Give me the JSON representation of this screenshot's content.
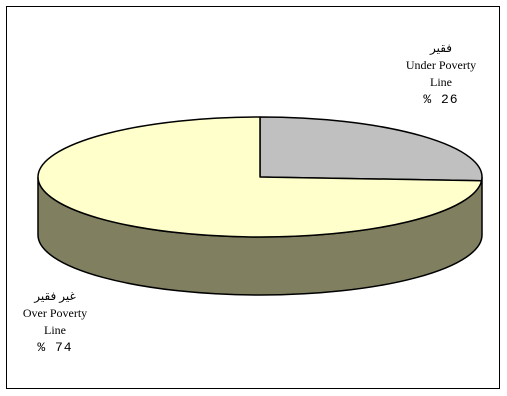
{
  "chart_data": {
    "type": "pie",
    "style": "3d",
    "slices": [
      {
        "label_ar": "فقير",
        "label_en": "Under Poverty",
        "label_en2": "Line",
        "percent_text": "% 26",
        "value": 26,
        "color": "#c0c0c0"
      },
      {
        "label_ar": "غير فقير",
        "label_en": "Over Poverty",
        "label_en2": "Line",
        "percent_text": "% 74",
        "value": 74,
        "color": "#ffffcc"
      }
    ],
    "side_color": "#808060",
    "legend": "none"
  }
}
